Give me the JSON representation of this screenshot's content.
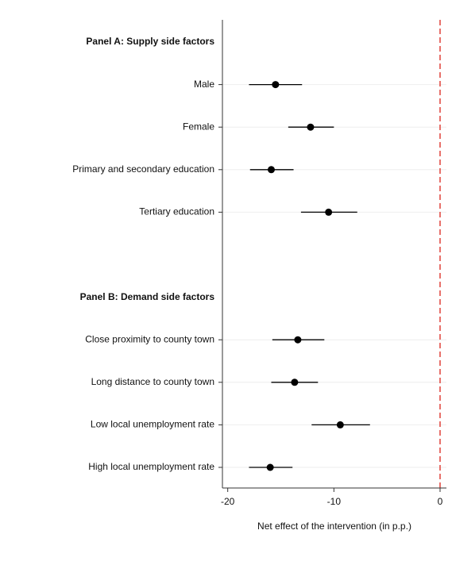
{
  "chart_data": {
    "type": "coefplot",
    "xlabel": "Net effect of the intervention (in p.p.)",
    "categories": [
      "Panel A: Supply side factors",
      "Male",
      "Female",
      "Primary and secondary education",
      "Tertiary education",
      null,
      "Panel B: Demand side factors",
      "Close proximity to county town",
      "Long distance to county town",
      "Low local unemployment rate",
      "High local unemployment rate"
    ],
    "values": [
      null,
      -15.5,
      -12.2,
      -15.9,
      -10.5,
      null,
      null,
      -13.4,
      -13.7,
      -9.4,
      -16.0
    ],
    "lower": [
      null,
      -18.0,
      -14.3,
      -17.9,
      -13.1,
      null,
      null,
      -15.8,
      -15.9,
      -12.1,
      -18.0
    ],
    "upper": [
      null,
      -13.0,
      -10.0,
      -13.8,
      -7.8,
      null,
      null,
      -10.9,
      -11.5,
      -6.6,
      -13.9
    ],
    "color": "#000000",
    "xlim": [
      -20.5,
      0.6
    ],
    "xticks": [
      -20,
      -10,
      0
    ],
    "reference_line": {
      "value": 0,
      "color": "#e0413a",
      "style": "dashed"
    },
    "grid": true
  }
}
